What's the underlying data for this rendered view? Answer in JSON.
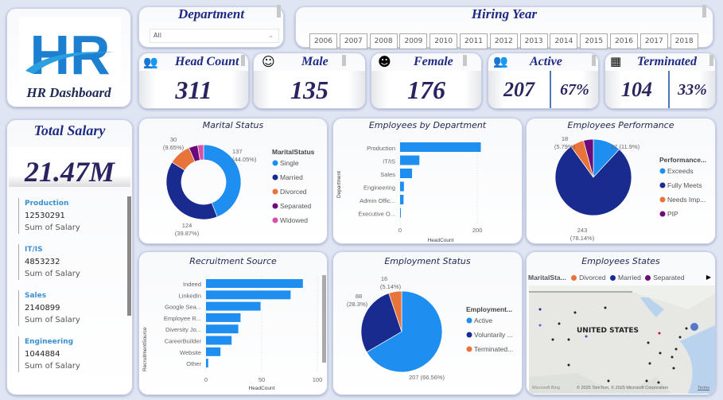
{
  "logo": {
    "text": "HR",
    "caption": "HR Dashboard"
  },
  "department_slicer": {
    "title": "Department",
    "value": "All"
  },
  "hiring_year": {
    "title": "Hiring Year",
    "years": [
      "2006",
      "2007",
      "2008",
      "2009",
      "2010",
      "2011",
      "2012",
      "2013",
      "2014",
      "2015",
      "2016",
      "2017",
      "2018"
    ]
  },
  "kpis": {
    "head_count": {
      "title": "Head Count",
      "value": "311",
      "icon": "people-group-icon"
    },
    "male": {
      "title": "Male",
      "value": "135",
      "icon": "male-face-icon"
    },
    "female": {
      "title": "Female",
      "value": "176",
      "icon": "female-face-icon"
    },
    "active": {
      "title": "Active",
      "value": "207",
      "pct": "67%",
      "icon": "active-users-icon"
    },
    "terminated": {
      "title": "Terminated",
      "value": "104",
      "pct": "33%",
      "icon": "terminated-icon"
    }
  },
  "total_salary": {
    "title": "Total Salary",
    "value": "21.47M",
    "items": [
      {
        "dept": "Production",
        "value": "12530291",
        "label": "Sum of Salary"
      },
      {
        "dept": "IT/IS",
        "value": "4853232",
        "label": "Sum of Salary"
      },
      {
        "dept": "Sales",
        "value": "2140899",
        "label": "Sum of Salary"
      },
      {
        "dept": "Engineering",
        "value": "1044884",
        "label": "Sum of Salary"
      }
    ]
  },
  "colors": {
    "blue": "#1f8ef1",
    "navy": "#1a2b8f",
    "orange": "#e8743b",
    "purple": "#6b0b7a",
    "pink": "#d64fa8"
  },
  "chart_data": [
    {
      "id": "marital",
      "type": "pie",
      "donut": true,
      "title": "Marital Status",
      "legend_title": "MaritalStatus",
      "legend": "right",
      "categories": [
        "Single",
        "Married",
        "Divorced",
        "Separated",
        "Widowed"
      ],
      "values": [
        137,
        124,
        30,
        12,
        8
      ],
      "data_labels": {
        "Single": [
          "137",
          "(44.05%)"
        ],
        "Married": [
          "124",
          "(39.87%)"
        ],
        "Divorced": [
          "30",
          "(9.65%)"
        ]
      }
    },
    {
      "id": "dept",
      "type": "bar",
      "orientation": "horizontal",
      "title": "Employees by Department",
      "xlabel": "HeadCount",
      "ylabel": "Department",
      "categories": [
        "Production",
        "IT/IS",
        "Sales",
        "Engineering",
        "Admin Offic...",
        "Executive O..."
      ],
      "values": [
        209,
        50,
        31,
        10,
        9,
        1
      ],
      "xlim": [
        0,
        210
      ],
      "xticks": [
        "0",
        "200"
      ]
    },
    {
      "id": "perf",
      "type": "pie",
      "title": "Employees Performance",
      "legend_title": "Performance...",
      "legend": "right",
      "categories": [
        "Exceeds",
        "Fully Meets",
        "Needs Imp...",
        "PIP"
      ],
      "values": [
        37,
        243,
        18,
        13
      ],
      "data_labels": {
        "Exceeds": [
          "37 (11.9%)"
        ],
        "Fully Meets": [
          "243",
          "(78.14%)"
        ],
        "Needs Imp...": [
          "18",
          "(5.79%)"
        ]
      }
    },
    {
      "id": "recruit",
      "type": "bar",
      "orientation": "horizontal",
      "title": "Recruitment Source",
      "xlabel": "HeadCount",
      "ylabel": "RecruitmentSource",
      "categories": [
        "Indeed",
        "LinkedIn",
        "Google Sea...",
        "Employee R...",
        "Diversity Jo...",
        "CareerBuilder",
        "Website",
        "Other"
      ],
      "values": [
        87,
        76,
        49,
        31,
        29,
        23,
        13,
        2
      ],
      "xlim": [
        0,
        100
      ],
      "xticks": [
        "0",
        "50",
        "100"
      ]
    },
    {
      "id": "employment",
      "type": "pie",
      "title": "Employment Status",
      "legend_title": "Employment...",
      "legend": "right",
      "categories": [
        "Active",
        "Voluntarily ...",
        "Terminated..."
      ],
      "values": [
        207,
        88,
        16
      ],
      "data_labels": {
        "Active": [
          "207 (66.56%)"
        ],
        "Voluntarily ...": [
          "88",
          "(28.3%)"
        ],
        "Terminated...": [
          "16",
          "(5.14%)"
        ]
      }
    }
  ],
  "map": {
    "title": "Employees States",
    "legend_title": "MaritalSta...",
    "legend": [
      "Divorced",
      "Married",
      "Separated"
    ],
    "country_label": "UNITED STATES",
    "attribution": "© 2025 TomTom, © 2025 Microsoft Corporation",
    "terms": "Terms",
    "bing": "Microsoft Bing"
  }
}
